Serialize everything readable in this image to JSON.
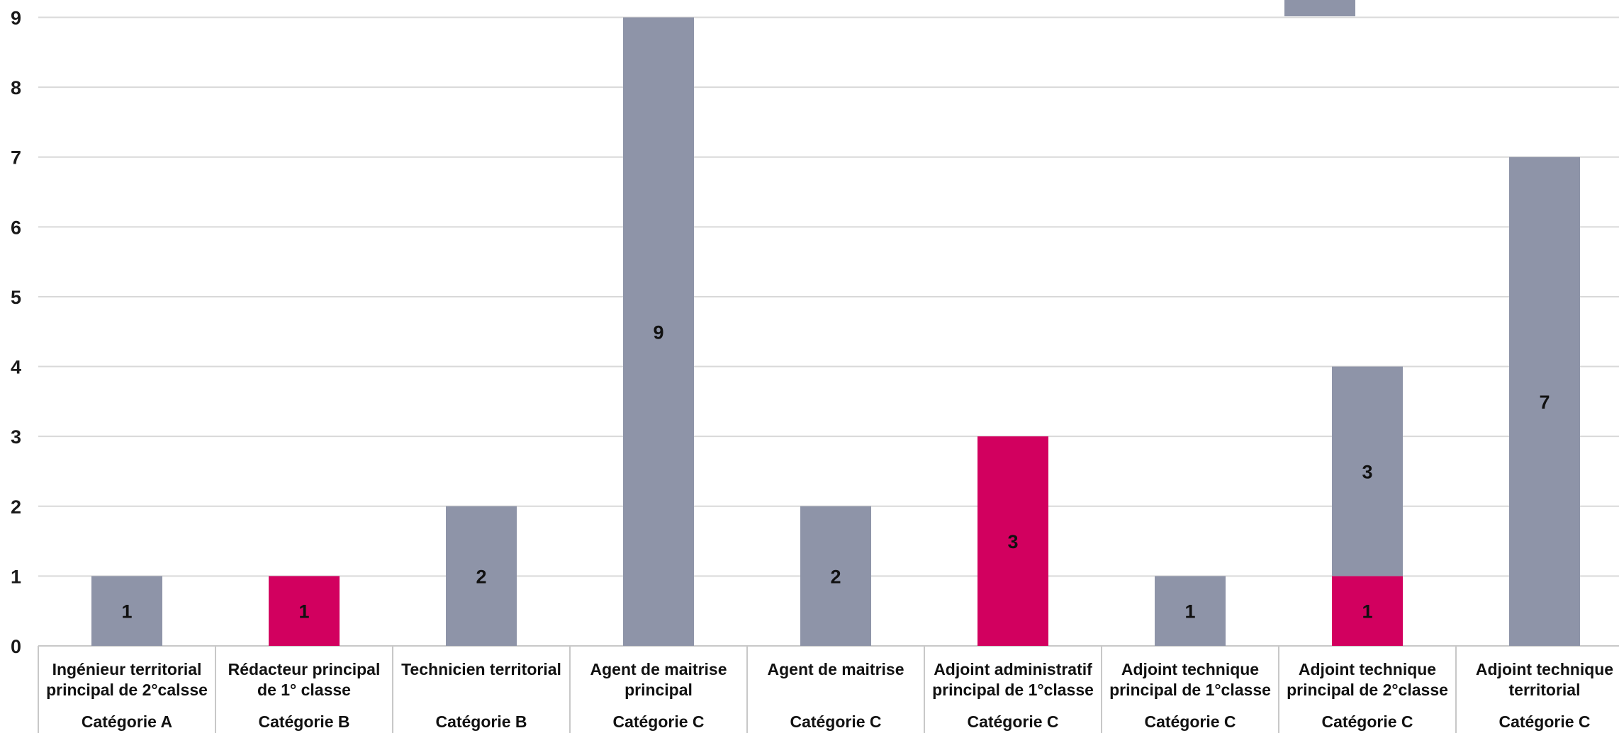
{
  "colors": {
    "series_a": "#8e94a8",
    "series_b": "#d2005f",
    "grid": "#d9d9d9",
    "axis_box": "#c8c8c8"
  },
  "chart_data": {
    "type": "bar",
    "stacked": true,
    "categories": [
      {
        "name_lines": [
          "Ingénieur territorial",
          "principal de 2°calsse"
        ],
        "group": "Catégorie A"
      },
      {
        "name_lines": [
          "Rédacteur principal",
          "de 1° classe"
        ],
        "group": "Catégorie B"
      },
      {
        "name_lines": [
          "Technicien territorial"
        ],
        "group": "Catégorie B"
      },
      {
        "name_lines": [
          "Agent de maitrise",
          "principal"
        ],
        "group": "Catégorie C"
      },
      {
        "name_lines": [
          "Agent de maitrise"
        ],
        "group": "Catégorie C"
      },
      {
        "name_lines": [
          "Adjoint administratif",
          "principal de 1°classe"
        ],
        "group": "Catégorie C"
      },
      {
        "name_lines": [
          "Adjoint technique",
          "principal de 1°classe"
        ],
        "group": "Catégorie C"
      },
      {
        "name_lines": [
          "Adjoint technique",
          "principal de 2°classe"
        ],
        "group": "Catégorie C"
      },
      {
        "name_lines": [
          "Adjoint technique",
          "territorial"
        ],
        "group": "Catégorie C"
      }
    ],
    "series": [
      {
        "color": "#d2005f",
        "values": [
          0,
          1,
          0,
          0,
          0,
          3,
          0,
          1,
          0
        ]
      },
      {
        "color": "#8e94a8",
        "values": [
          1,
          0,
          2,
          9,
          2,
          0,
          1,
          3,
          7
        ]
      }
    ],
    "yticks": [
      "0",
      "1",
      "2",
      "3",
      "4",
      "5",
      "6",
      "7",
      "8",
      "9"
    ],
    "ylim": [
      0,
      9
    ],
    "grid": true,
    "legend": "none",
    "title": "",
    "xlabel": "",
    "ylabel": ""
  }
}
